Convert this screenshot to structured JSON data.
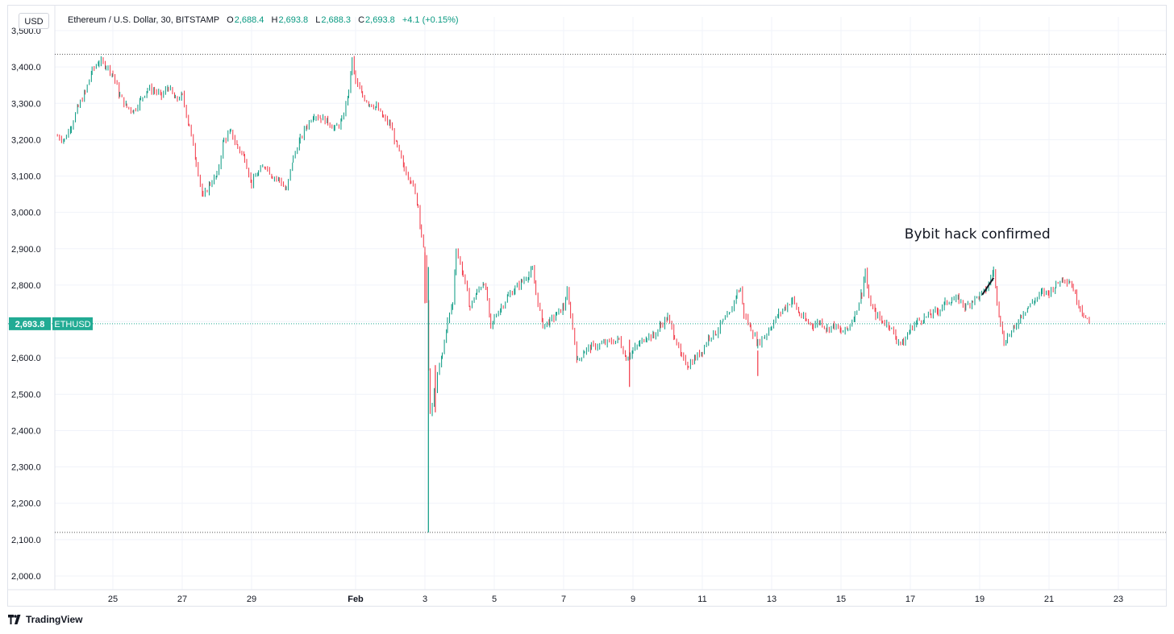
{
  "legend": {
    "symbol": "Ethereum / U.S. Dollar, 30, BITSTAMP",
    "o_label": "O",
    "o_value": "2,688.4",
    "h_label": "H",
    "h_value": "2,693.8",
    "l_label": "L",
    "l_value": "2,688.3",
    "c_label": "C",
    "c_value": "2,693.8",
    "change": "+4.1 (+0.15%)"
  },
  "currency_badge": "USD",
  "footer": {
    "brand": "TradingView"
  },
  "colors": {
    "up": "#089981",
    "down": "#f23645",
    "price_line": "#22ab94",
    "grid": "#f0f3fa",
    "dotted": "#555555"
  },
  "chart_data": {
    "type": "line",
    "title": "",
    "ylim": [
      1980,
      3520
    ],
    "y_ticks": [
      "2,000.0",
      "2,100.0",
      "2,200.0",
      "2,300.0",
      "2,400.0",
      "2,500.0",
      "2,600.0",
      "2,700.0",
      "2,800.0",
      "2,900.0",
      "3,000.0",
      "3,100.0",
      "3,200.0",
      "3,300.0",
      "3,400.0",
      "3,500.0"
    ],
    "x_ticks": [
      {
        "label": "25",
        "day": 1.2
      },
      {
        "label": "27",
        "day": 3.2
      },
      {
        "label": "29",
        "day": 5.2
      },
      {
        "label": "Feb",
        "day": 8.2
      },
      {
        "label": "3",
        "day": 10.2
      },
      {
        "label": "5",
        "day": 12.2
      },
      {
        "label": "7",
        "day": 14.2
      },
      {
        "label": "9",
        "day": 16.2
      },
      {
        "label": "11",
        "day": 18.2
      },
      {
        "label": "13",
        "day": 20.2
      },
      {
        "label": "15",
        "day": 22.2
      },
      {
        "label": "17",
        "day": 24.2
      },
      {
        "label": "19",
        "day": 26.2
      },
      {
        "label": "21",
        "day": 28.2
      },
      {
        "label": "23",
        "day": 30.2
      }
    ],
    "series": [
      {
        "interval": "30",
        "points": [
          [
            -0.4,
            3210
          ],
          [
            -0.2,
            3200
          ],
          [
            0.0,
            3240
          ],
          [
            0.2,
            3290
          ],
          [
            0.4,
            3330
          ],
          [
            0.6,
            3390
          ],
          [
            0.8,
            3415
          ],
          [
            1.0,
            3405
          ],
          [
            1.2,
            3380
          ],
          [
            1.4,
            3320
          ],
          [
            1.6,
            3290
          ],
          [
            1.8,
            3280
          ],
          [
            2.0,
            3310
          ],
          [
            2.2,
            3340
          ],
          [
            2.4,
            3335
          ],
          [
            2.6,
            3320
          ],
          [
            2.8,
            3345
          ],
          [
            3.0,
            3310
          ],
          [
            3.2,
            3320
          ],
          [
            3.4,
            3240
          ],
          [
            3.6,
            3140
          ],
          [
            3.8,
            3040
          ],
          [
            4.0,
            3080
          ],
          [
            4.2,
            3100
          ],
          [
            4.4,
            3200
          ],
          [
            4.6,
            3220
          ],
          [
            4.8,
            3180
          ],
          [
            5.0,
            3150
          ],
          [
            5.2,
            3080
          ],
          [
            5.4,
            3110
          ],
          [
            5.6,
            3130
          ],
          [
            5.8,
            3100
          ],
          [
            6.0,
            3090
          ],
          [
            6.2,
            3060
          ],
          [
            6.4,
            3150
          ],
          [
            6.6,
            3200
          ],
          [
            6.8,
            3240
          ],
          [
            7.0,
            3270
          ],
          [
            7.2,
            3260
          ],
          [
            7.4,
            3250
          ],
          [
            7.6,
            3230
          ],
          [
            7.8,
            3250
          ],
          [
            8.0,
            3330
          ],
          [
            8.1,
            3420
          ],
          [
            8.2,
            3360
          ],
          [
            8.4,
            3320
          ],
          [
            8.6,
            3300
          ],
          [
            8.8,
            3290
          ],
          [
            9.0,
            3260
          ],
          [
            9.2,
            3240
          ],
          [
            9.4,
            3180
          ],
          [
            9.6,
            3120
          ],
          [
            9.8,
            3090
          ],
          [
            10.0,
            3020
          ],
          [
            10.1,
            2940
          ],
          [
            10.2,
            2870
          ],
          [
            10.25,
            2760
          ],
          [
            10.35,
            2440
          ],
          [
            10.5,
            2520
          ],
          [
            10.7,
            2610
          ],
          [
            10.85,
            2700
          ],
          [
            11.0,
            2750
          ],
          [
            11.1,
            2900
          ],
          [
            11.3,
            2830
          ],
          [
            11.5,
            2740
          ],
          [
            11.7,
            2780
          ],
          [
            11.9,
            2810
          ],
          [
            12.0,
            2760
          ],
          [
            12.1,
            2680
          ],
          [
            12.2,
            2710
          ],
          [
            12.4,
            2740
          ],
          [
            12.6,
            2770
          ],
          [
            12.8,
            2790
          ],
          [
            13.0,
            2810
          ],
          [
            13.2,
            2830
          ],
          [
            13.3,
            2840
          ],
          [
            13.4,
            2780
          ],
          [
            13.6,
            2690
          ],
          [
            13.8,
            2700
          ],
          [
            14.0,
            2720
          ],
          [
            14.2,
            2740
          ],
          [
            14.3,
            2780
          ],
          [
            14.4,
            2720
          ],
          [
            14.6,
            2590
          ],
          [
            14.8,
            2620
          ],
          [
            15.0,
            2630
          ],
          [
            15.4,
            2640
          ],
          [
            15.8,
            2650
          ],
          [
            16.0,
            2600
          ],
          [
            16.2,
            2620
          ],
          [
            16.4,
            2640
          ],
          [
            16.6,
            2660
          ],
          [
            16.8,
            2660
          ],
          [
            17.0,
            2690
          ],
          [
            17.2,
            2710
          ],
          [
            17.4,
            2660
          ],
          [
            17.6,
            2600
          ],
          [
            17.8,
            2580
          ],
          [
            18.0,
            2600
          ],
          [
            18.2,
            2620
          ],
          [
            18.4,
            2660
          ],
          [
            18.6,
            2670
          ],
          [
            18.8,
            2700
          ],
          [
            19.0,
            2720
          ],
          [
            19.2,
            2780
          ],
          [
            19.3,
            2790
          ],
          [
            19.4,
            2720
          ],
          [
            19.6,
            2680
          ],
          [
            19.8,
            2640
          ],
          [
            20.0,
            2660
          ],
          [
            20.2,
            2690
          ],
          [
            20.4,
            2720
          ],
          [
            20.6,
            2740
          ],
          [
            20.8,
            2760
          ],
          [
            21.0,
            2720
          ],
          [
            21.2,
            2700
          ],
          [
            21.4,
            2690
          ],
          [
            21.6,
            2700
          ],
          [
            21.8,
            2680
          ],
          [
            22.0,
            2690
          ],
          [
            22.2,
            2670
          ],
          [
            22.4,
            2680
          ],
          [
            22.6,
            2720
          ],
          [
            22.8,
            2780
          ],
          [
            22.9,
            2840
          ],
          [
            23.0,
            2760
          ],
          [
            23.2,
            2720
          ],
          [
            23.4,
            2700
          ],
          [
            23.6,
            2690
          ],
          [
            23.8,
            2650
          ],
          [
            24.0,
            2640
          ],
          [
            24.2,
            2680
          ],
          [
            24.4,
            2700
          ],
          [
            24.6,
            2710
          ],
          [
            24.8,
            2720
          ],
          [
            25.0,
            2730
          ],
          [
            25.2,
            2750
          ],
          [
            25.4,
            2760
          ],
          [
            25.6,
            2760
          ],
          [
            25.8,
            2740
          ],
          [
            26.0,
            2760
          ],
          [
            26.2,
            2770
          ],
          [
            26.4,
            2790
          ],
          [
            26.6,
            2840
          ],
          [
            26.7,
            2760
          ],
          [
            26.8,
            2700
          ],
          [
            26.9,
            2640
          ],
          [
            27.0,
            2660
          ],
          [
            27.2,
            2680
          ],
          [
            27.4,
            2720
          ],
          [
            27.6,
            2740
          ],
          [
            27.8,
            2760
          ],
          [
            28.0,
            2780
          ],
          [
            28.2,
            2780
          ],
          [
            28.4,
            2800
          ],
          [
            28.6,
            2820
          ],
          [
            28.8,
            2810
          ],
          [
            28.9,
            2790
          ],
          [
            29.0,
            2760
          ],
          [
            29.1,
            2740
          ],
          [
            29.2,
            2720
          ],
          [
            29.3,
            2700
          ],
          [
            29.4,
            2690
          ]
        ]
      }
    ],
    "spikes": [
      {
        "day": 10.2,
        "high": 2890,
        "low": 2750
      },
      {
        "day": 10.3,
        "high": 2850,
        "low": 2120
      },
      {
        "day": 10.5,
        "high": 2580,
        "low": 2450
      },
      {
        "day": 16.1,
        "high": 2650,
        "low": 2520
      },
      {
        "day": 19.8,
        "high": 2620,
        "low": 2550
      }
    ],
    "last_price_label": "2,693.8",
    "last_price_tag": "ETHUSD",
    "high_line": 3435,
    "low_line": 2120,
    "annotations": [
      {
        "text": "Bybit hack confirmed",
        "day": 26.6,
        "price": 2840
      }
    ]
  }
}
